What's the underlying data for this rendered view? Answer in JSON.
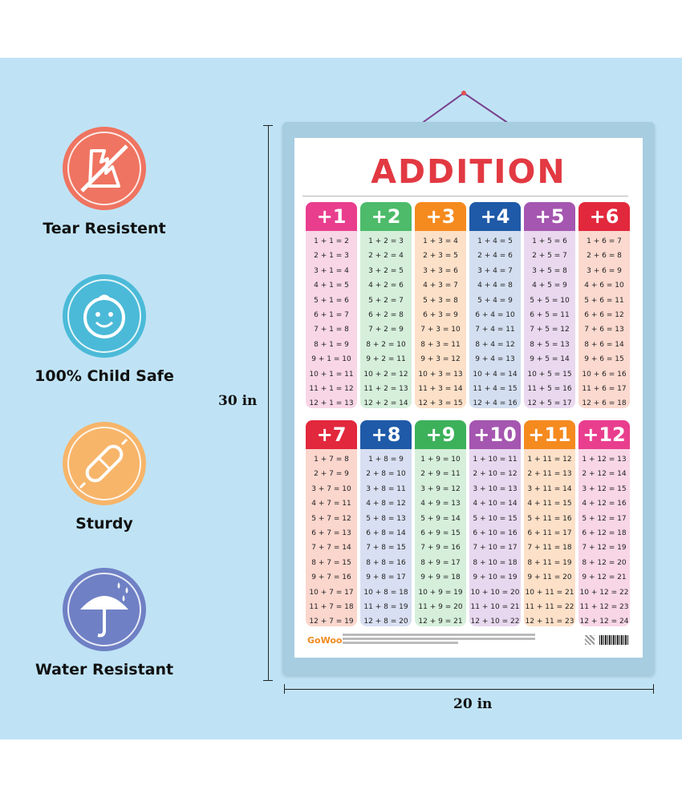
{
  "features": [
    {
      "label": "Tear Resistent",
      "icon": "torn-paper-icon",
      "color": "#ef7461"
    },
    {
      "label": "100% Child Safe",
      "icon": "baby-face-icon",
      "color": "#4bbad8"
    },
    {
      "label": "Sturdy",
      "icon": "bandage-icon",
      "color": "#f7b56a"
    },
    {
      "label": "Water Resistant",
      "icon": "umbrella-icon",
      "color": "#6f80c5"
    }
  ],
  "dimensions": {
    "height": "30 in",
    "width": "20 in"
  },
  "poster": {
    "title": "ADDITION",
    "brand": "GoWoo",
    "columns": [
      {
        "header": "+1",
        "color": "#e93e8e",
        "bg": "#f8d6e6",
        "rows": [
          "1 + 1 =  2",
          "2 + 1 =  3",
          "3 + 1 =  4",
          "4 + 1 =  5",
          "5 + 1 =  6",
          "6 + 1 =  7",
          "7 + 1 =  8",
          "8 + 1 =  9",
          "9 + 1 = 10",
          "10 + 1 = 11",
          "11 + 1 = 12",
          "12 + 1 = 13"
        ]
      },
      {
        "header": "+2",
        "color": "#4dbb6a",
        "bg": "#d5efdb",
        "rows": [
          "1 + 2 =  3",
          "2 + 2 =  4",
          "3 + 2 =  5",
          "4 + 2 =  6",
          "5 + 2 =  7",
          "6 + 2 =  8",
          "7 + 2 =  9",
          "8 + 2 = 10",
          "9 + 2 = 11",
          "10 + 2 = 12",
          "11 + 2 = 13",
          "12 + 2 = 14"
        ]
      },
      {
        "header": "+3",
        "color": "#f58a1f",
        "bg": "#fde0c8",
        "rows": [
          "1 + 3 =  4",
          "2 + 3 =  5",
          "3 + 3 =  6",
          "4 + 3 =  7",
          "5 + 3 =  8",
          "6 + 3 =  9",
          "7 + 3 = 10",
          "8 + 3 = 11",
          "9 + 3 = 12",
          "10 + 3 = 13",
          "11 + 3 = 14",
          "12 + 3 = 15"
        ]
      },
      {
        "header": "+4",
        "color": "#1f5aa8",
        "bg": "#d3dff0",
        "rows": [
          "1 + 4 =  5",
          "2 + 4 =  6",
          "3 + 4 =  7",
          "4 + 4 =  8",
          "5 + 4 =  9",
          "6 + 4 = 10",
          "7 + 4 = 11",
          "8 + 4 = 12",
          "9 + 4 = 13",
          "10 + 4 = 14",
          "11 + 4 = 15",
          "12 + 4 = 16"
        ]
      },
      {
        "header": "+5",
        "color": "#a556b0",
        "bg": "#ead8ef",
        "rows": [
          "1 + 5 =  6",
          "2 + 5 =  7",
          "3 + 5 =  8",
          "4 + 5 =  9",
          "5 + 5 = 10",
          "6 + 5 = 11",
          "7 + 5 = 12",
          "8 + 5 = 13",
          "9 + 5 = 14",
          "10 + 5 = 15",
          "11 + 5 = 16",
          "12 + 5 = 17"
        ]
      },
      {
        "header": "+6",
        "color": "#e2283d",
        "bg": "#fbd9cf",
        "rows": [
          "1 + 6 =  7",
          "2 + 6 =  8",
          "3 + 6 =  9",
          "4 + 6 = 10",
          "5 + 6 = 11",
          "6 + 6 = 12",
          "7 + 6 = 13",
          "8 + 6 = 14",
          "9 + 6 = 15",
          "10 + 6 = 16",
          "11 + 6 = 17",
          "12 + 6 = 18"
        ]
      },
      {
        "header": "+7",
        "color": "#e2283d",
        "bg": "#fbd6cd",
        "rows": [
          "1 + 7 =  8",
          "2 + 7 =  9",
          "3 + 7 = 10",
          "4 + 7 = 11",
          "5 + 7 = 12",
          "6 + 7 = 13",
          "7 + 7 = 14",
          "8 + 7 = 15",
          "9 + 7 = 16",
          "10 + 7 = 17",
          "11 + 7 = 18",
          "12 + 7 = 19"
        ]
      },
      {
        "header": "+8",
        "color": "#1f5aa8",
        "bg": "#d8dff2",
        "rows": [
          "1 + 8 =  9",
          "2 + 8 = 10",
          "3 + 8 = 11",
          "4 + 8 = 12",
          "5 + 8 = 13",
          "6 + 8 = 14",
          "7 + 8 = 15",
          "8 + 8 = 16",
          "9 + 8 = 17",
          "10 + 8 = 18",
          "11 + 8 = 19",
          "12 + 8 = 20"
        ]
      },
      {
        "header": "+9",
        "color": "#3cb15a",
        "bg": "#d6efdb",
        "rows": [
          "1 + 9 = 10",
          "2 + 9 = 11",
          "3 + 9 = 12",
          "4 + 9 = 13",
          "5 + 9 = 14",
          "6 + 9 = 15",
          "7 + 9 = 16",
          "8 + 9 = 17",
          "9 + 9 = 18",
          "10 + 9 = 19",
          "11 + 9 = 20",
          "12 + 9 = 21"
        ]
      },
      {
        "header": "+10",
        "color": "#a556b0",
        "bg": "#e8d8ef",
        "rows": [
          "1 + 10 = 11",
          "2 + 10 = 12",
          "3 + 10 = 13",
          "4 + 10 = 14",
          "5 + 10 = 15",
          "6 + 10 = 16",
          "7 + 10 = 17",
          "8 + 10 = 18",
          "9 + 10 = 19",
          "10 + 10 = 20",
          "11 + 10 = 21",
          "12 + 10 = 22"
        ]
      },
      {
        "header": "+11",
        "color": "#f58a1f",
        "bg": "#fde0c8",
        "rows": [
          "1 + 11 = 12",
          "2 + 11 = 13",
          "3 + 11 = 14",
          "4 + 11 = 15",
          "5 + 11 = 16",
          "6 + 11 = 17",
          "7 + 11 = 18",
          "8 + 11 = 19",
          "9 + 11 = 20",
          "10 + 11 = 21",
          "11 + 11 = 22",
          "12 + 11 = 23"
        ]
      },
      {
        "header": "+12",
        "color": "#e93e8e",
        "bg": "#f8d6e6",
        "rows": [
          "1 + 12 = 13",
          "2 + 12 = 14",
          "3 + 12 = 15",
          "4 + 12 = 16",
          "5 + 12 = 17",
          "6 + 12 = 18",
          "7 + 12 = 19",
          "8 + 12 = 20",
          "9 + 12 = 21",
          "10 + 12 = 22",
          "11 + 12 = 23",
          "12 + 12 = 24"
        ]
      }
    ]
  }
}
